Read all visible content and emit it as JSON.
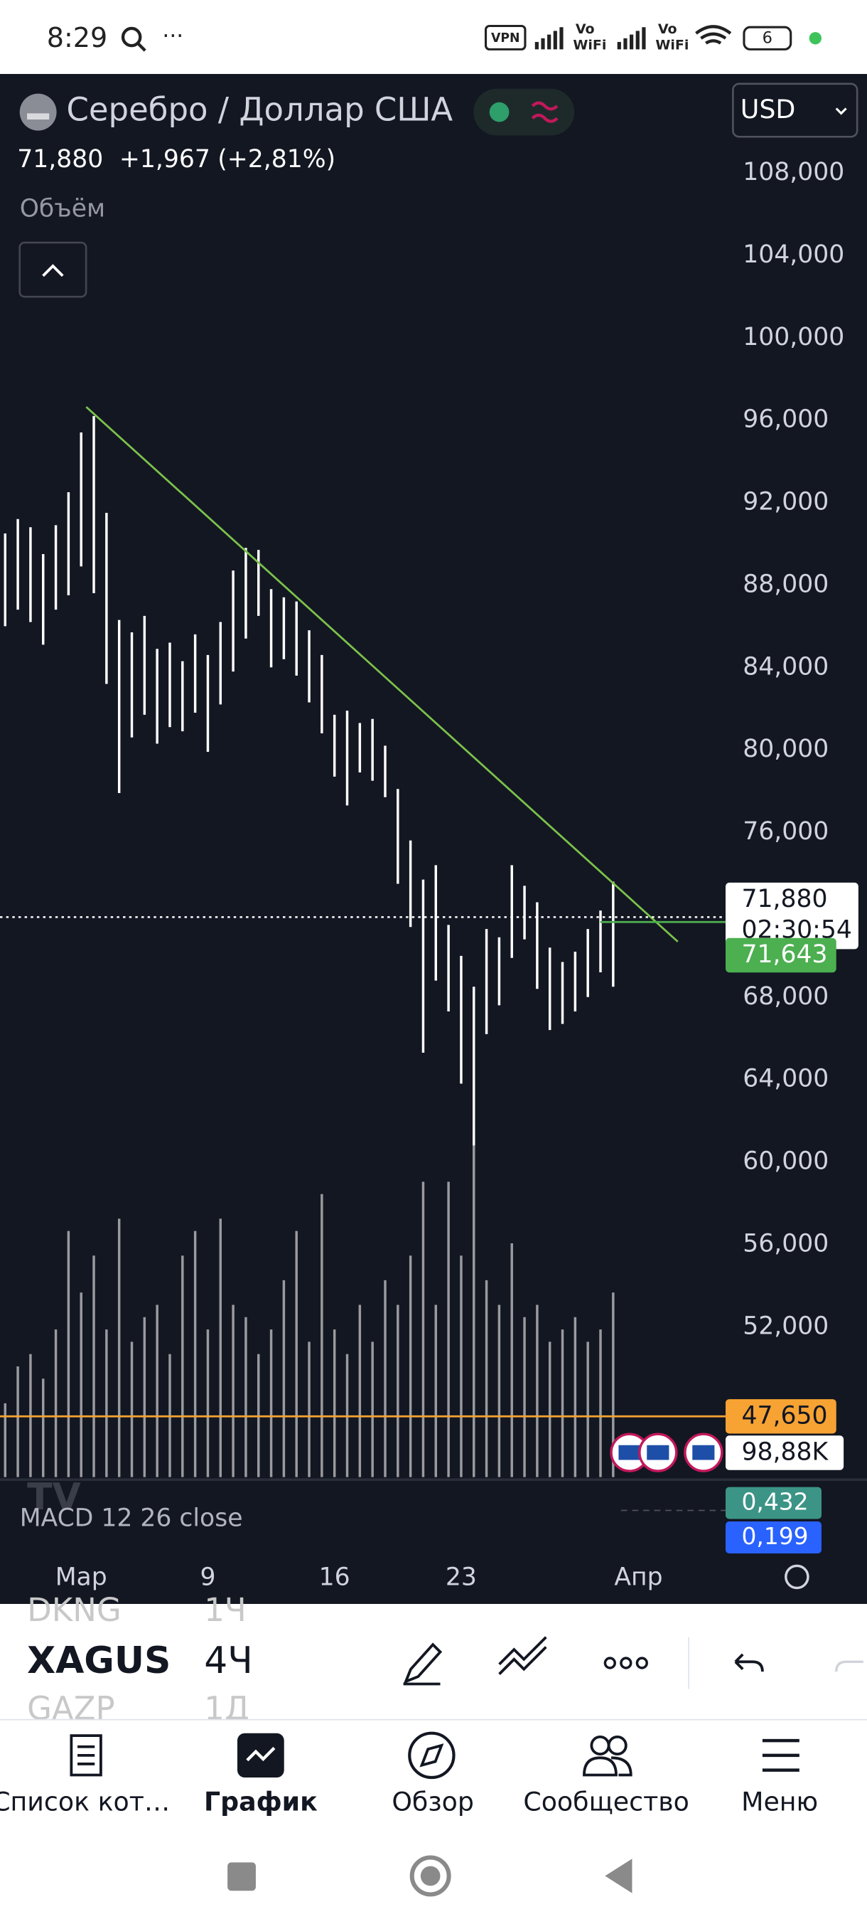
{
  "status_bar": {
    "time": "8:29",
    "vpn": "VPN",
    "vo1": "Vo",
    "wifi1": "WiFi",
    "vo2": "Vo",
    "wifi2": "WiFi",
    "battery": "6"
  },
  "header": {
    "title": "Серебро / Доллар США",
    "currency": "USD",
    "price": "71,880",
    "change": "+1,967",
    "change_pct": "(+2,81%)",
    "volume_label": "Объём"
  },
  "chart_data": {
    "type": "ohlc",
    "color": "#ffffff",
    "categories": [
      null,
      null,
      null,
      null,
      null,
      null,
      "Мар",
      null,
      null,
      null,
      null,
      null,
      null,
      null,
      null,
      null,
      "9",
      null,
      null,
      null,
      null,
      null,
      null,
      null,
      null,
      null,
      "16",
      null,
      null,
      null,
      null,
      null,
      null,
      null,
      null,
      null,
      "23",
      null,
      null,
      null,
      null,
      null,
      null,
      null,
      null,
      null,
      null,
      null,
      null,
      null,
      "Апр",
      null
    ],
    "high": [
      90500,
      91200,
      90800,
      89500,
      90900,
      92500,
      95400,
      96200,
      91500,
      86300,
      85700,
      86500,
      84900,
      85200,
      84300,
      85600,
      84600,
      86200,
      88700,
      89800,
      89700,
      87800,
      87400,
      87200,
      85800,
      84600,
      81700,
      81900,
      81300,
      81500,
      80200,
      78100,
      75600,
      73700,
      74400,
      71500,
      70000,
      68500,
      71300,
      70900,
      74400,
      73400,
      72600,
      70400,
      69700,
      70200,
      71300,
      72200,
      73600,
      null,
      null,
      null
    ],
    "low": [
      86000,
      86800,
      86200,
      85100,
      86800,
      87500,
      88900,
      87600,
      83200,
      77900,
      80600,
      81700,
      80300,
      81100,
      80900,
      81800,
      79900,
      82200,
      83800,
      85400,
      86500,
      84000,
      84400,
      83600,
      82300,
      80800,
      78700,
      77300,
      78900,
      78500,
      77700,
      73500,
      71400,
      65300,
      68800,
      67300,
      63800,
      60800,
      66200,
      67600,
      69900,
      70800,
      68400,
      66400,
      66700,
      67300,
      68000,
      69200,
      68500,
      null,
      null,
      null
    ],
    "ylim": [
      44700,
      112800
    ],
    "yticks": [
      {
        "value": 108000,
        "label": "108,000"
      },
      {
        "value": 104000,
        "label": "104,000"
      },
      {
        "value": 100000,
        "label": "100,000"
      },
      {
        "value": 96000,
        "label": "96,000"
      },
      {
        "value": 92000,
        "label": "92,000"
      },
      {
        "value": 88000,
        "label": "88,000"
      },
      {
        "value": 84000,
        "label": "84,000"
      },
      {
        "value": 80000,
        "label": "80,000"
      },
      {
        "value": 76000,
        "label": "76,000"
      },
      {
        "value": 72000,
        "label": "72,000"
      },
      {
        "value": 68000,
        "label": "68,000"
      },
      {
        "value": 64000,
        "label": "64,000"
      },
      {
        "value": 60000,
        "label": "60,000"
      },
      {
        "value": 56000,
        "label": "56,000"
      },
      {
        "value": 52000,
        "label": "52,000"
      }
    ],
    "trendline": {
      "color": "#7cc24a",
      "x": [
        6.4,
        53.1
      ],
      "y": [
        96640,
        70690
      ]
    },
    "price_lines": [
      {
        "value": 71880,
        "label": "71,880",
        "countdown": "02:30:54",
        "color": "#ffffff",
        "text_color": "#131722",
        "line_style": "dotted"
      },
      {
        "value": 71643,
        "label": "71,643",
        "color": "#4caf50",
        "text_color": "#ffffff",
        "line_style": "short"
      },
      {
        "value": 47650,
        "label": "47,650",
        "color": "#f7a333",
        "text_color": "#131722",
        "line_style": "solid"
      }
    ],
    "volume": {
      "color": "#c8c8c8",
      "ylim": [
        0,
        1250
      ],
      "last": 98.88,
      "last_label": "98,88K",
      "values": [
        300,
        450,
        500,
        400,
        600,
        1000,
        750,
        900,
        600,
        1050,
        550,
        650,
        700,
        500,
        900,
        1000,
        600,
        1050,
        700,
        650,
        500,
        600,
        800,
        1000,
        550,
        1150,
        600,
        500,
        700,
        550,
        800,
        700,
        900,
        1200,
        700,
        1200,
        900,
        1400,
        800,
        700,
        950,
        650,
        700,
        550,
        600,
        650,
        550,
        600,
        750,
        null,
        null,
        null
      ]
    },
    "indicator": {
      "name": "MACD 12 26 close",
      "ylim": [
        0.124,
        0.565
      ],
      "values": [
        0.432,
        0.199
      ],
      "value_labels": [
        "0,432",
        "0,199"
      ],
      "colors": [
        "#3c9486",
        "#2962ff"
      ]
    }
  },
  "toolbar": {
    "symbols": [
      {
        "symbol": "DKNG",
        "interval": "1Ч"
      },
      {
        "symbol": "XAGUS",
        "interval": "4Ч"
      },
      {
        "symbol": "GAZP",
        "interval": "1Д"
      }
    ]
  },
  "nav": [
    "Список кот…",
    "График",
    "Обзор",
    "Сообщество",
    "Меню"
  ]
}
